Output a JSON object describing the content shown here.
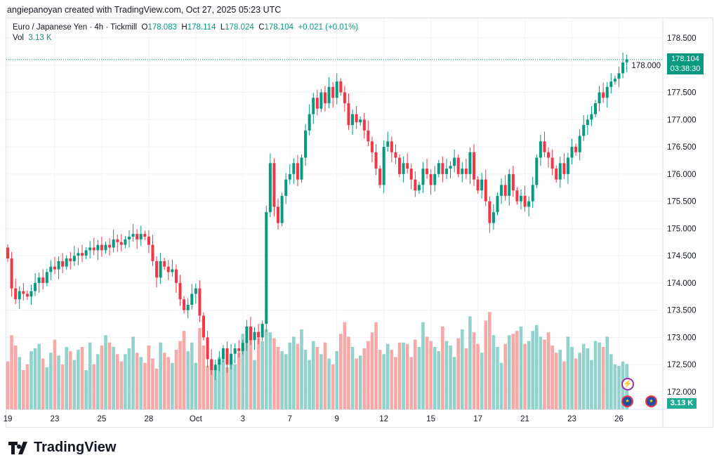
{
  "credit": "angiepanoyan created with TradingView.com, Oct 27, 2025 05:23 UTC",
  "legend": {
    "symbol": "Euro / Japanese Yen · 4h · Tickmill",
    "o_label": "O",
    "o": "178.083",
    "h_label": "H",
    "h": "178.114",
    "l_label": "L",
    "l": "178.024",
    "c_label": "C",
    "c": "178.104",
    "change": "+0.021 (+0.01%)",
    "vol_label": "Vol",
    "vol": "3.13 K"
  },
  "last_price": {
    "price": "178.104",
    "countdown": "03:38:30",
    "vol": "3.13 K"
  },
  "brand": "TradingView",
  "colors": {
    "up": "#089981",
    "down": "#f23645",
    "vol_up": "#92d2cc",
    "vol_down": "#f7a9a7"
  },
  "chart_data": {
    "type": "candlestick",
    "price_ticks": [
      "178.500",
      "178.000",
      "177.500",
      "177.000",
      "176.500",
      "176.000",
      "175.500",
      "175.000",
      "174.500",
      "174.000",
      "173.500",
      "173.000",
      "172.500",
      "172.000"
    ],
    "ylim": [
      172.0,
      178.5
    ],
    "time_labels": [
      {
        "label": "19",
        "i": 0
      },
      {
        "label": "23",
        "i": 12
      },
      {
        "label": "25",
        "i": 24
      },
      {
        "label": "28",
        "i": 36
      },
      {
        "label": "Oct",
        "i": 48
      },
      {
        "label": "3",
        "i": 60
      },
      {
        "label": "7",
        "i": 72
      },
      {
        "label": "9",
        "i": 84
      },
      {
        "label": "12",
        "i": 96
      },
      {
        "label": "15",
        "i": 108
      },
      {
        "label": "17",
        "i": 120
      },
      {
        "label": "21",
        "i": 132
      },
      {
        "label": "23",
        "i": 144
      },
      {
        "label": "26",
        "i": 156
      }
    ],
    "closes": [
      174.45,
      173.9,
      173.7,
      173.85,
      173.8,
      173.75,
      173.85,
      174.0,
      174.1,
      174.0,
      174.2,
      174.3,
      174.25,
      174.4,
      174.3,
      174.45,
      174.4,
      174.5,
      174.55,
      174.5,
      174.6,
      174.65,
      174.6,
      174.7,
      174.6,
      174.7,
      174.65,
      174.8,
      174.75,
      174.7,
      174.8,
      174.85,
      174.9,
      174.8,
      174.9,
      174.85,
      174.7,
      174.4,
      174.1,
      174.4,
      174.3,
      174.2,
      174.25,
      174.0,
      173.7,
      173.5,
      173.6,
      173.8,
      173.9,
      173.4,
      173.0,
      172.6,
      172.4,
      172.5,
      172.6,
      172.8,
      172.5,
      172.7,
      172.8,
      172.75,
      172.9,
      173.2,
      172.95,
      173.1,
      173.0,
      173.25,
      175.3,
      176.2,
      175.4,
      175.1,
      175.6,
      175.9,
      176.0,
      176.2,
      175.9,
      176.3,
      176.8,
      177.1,
      177.4,
      177.2,
      177.5,
      177.3,
      177.6,
      177.4,
      177.7,
      177.5,
      177.3,
      176.9,
      177.1,
      176.95,
      177.0,
      176.8,
      176.6,
      176.4,
      176.1,
      175.8,
      176.5,
      176.6,
      176.4,
      176.3,
      176.0,
      176.2,
      176.1,
      175.9,
      175.7,
      175.8,
      176.1,
      176.0,
      175.8,
      176.0,
      176.2,
      176.0,
      176.1,
      176.15,
      176.3,
      176.0,
      176.1,
      176.0,
      176.4,
      175.9,
      175.7,
      175.9,
      175.5,
      175.1,
      175.3,
      175.6,
      175.8,
      175.6,
      176.0,
      175.7,
      175.5,
      175.6,
      175.4,
      175.5,
      175.8,
      176.3,
      176.6,
      176.4,
      176.3,
      176.1,
      175.9,
      176.2,
      176.0,
      176.3,
      176.5,
      176.4,
      176.7,
      176.9,
      177.0,
      177.1,
      177.3,
      177.5,
      177.4,
      177.6,
      177.7,
      177.75,
      177.85,
      178.05,
      178.104
    ],
    "volumes_k": [
      3.3,
      5.1,
      4.4,
      3.6,
      2.7,
      3.1,
      4.0,
      4.2,
      4.5,
      3.5,
      2.9,
      3.9,
      4.8,
      3.7,
      3.1,
      4.3,
      4.0,
      3.4,
      4.1,
      4.3,
      2.7,
      4.6,
      3.1,
      3.8,
      4.4,
      5.1,
      4.6,
      4.3,
      3.8,
      3.3,
      3.8,
      4.2,
      5.0,
      3.9,
      3.6,
      3.2,
      4.4,
      3.5,
      2.8,
      4.6,
      3.9,
      3.6,
      3.2,
      4.1,
      4.7,
      5.4,
      4.0,
      4.6,
      3.2,
      5.6,
      4.4,
      3.0,
      3.4,
      2.9,
      3.6,
      3.4,
      2.9,
      3.5,
      3.1,
      3.9,
      5.2,
      4.6,
      5.6,
      3.4,
      4.9,
      4.7,
      5.5,
      5.3,
      4.9,
      4.3,
      4.0,
      3.8,
      4.6,
      5.0,
      4.5,
      5.5,
      4.1,
      3.4,
      4.7,
      4.3,
      3.8,
      4.6,
      3.5,
      3.1,
      4.0,
      5.2,
      6.0,
      5.0,
      4.3,
      3.5,
      3.7,
      4.2,
      4.7,
      5.3,
      6.0,
      4.1,
      3.8,
      4.5,
      4.1,
      3.6,
      4.6,
      4.6,
      4.5,
      3.6,
      4.8,
      4.3,
      6.0,
      5.0,
      4.7,
      4.3,
      4.0,
      5.7,
      4.7,
      4.4,
      3.6,
      4.9,
      5.5,
      4.2,
      6.4,
      5.3,
      4.5,
      3.9,
      6.1,
      6.7,
      5.1,
      4.3,
      3.2,
      4.5,
      5.1,
      5.2,
      5.4,
      5.7,
      4.5,
      4.7,
      5.4,
      5.8,
      5.0,
      4.8,
      5.3,
      4.4,
      3.9,
      4.1,
      3.3,
      5.0,
      4.3,
      3.5,
      3.9,
      4.5,
      4.2,
      3.4,
      4.7,
      4.6,
      4.3,
      5.0,
      3.8,
      3.1,
      3.0,
      3.3,
      3.13
    ]
  }
}
